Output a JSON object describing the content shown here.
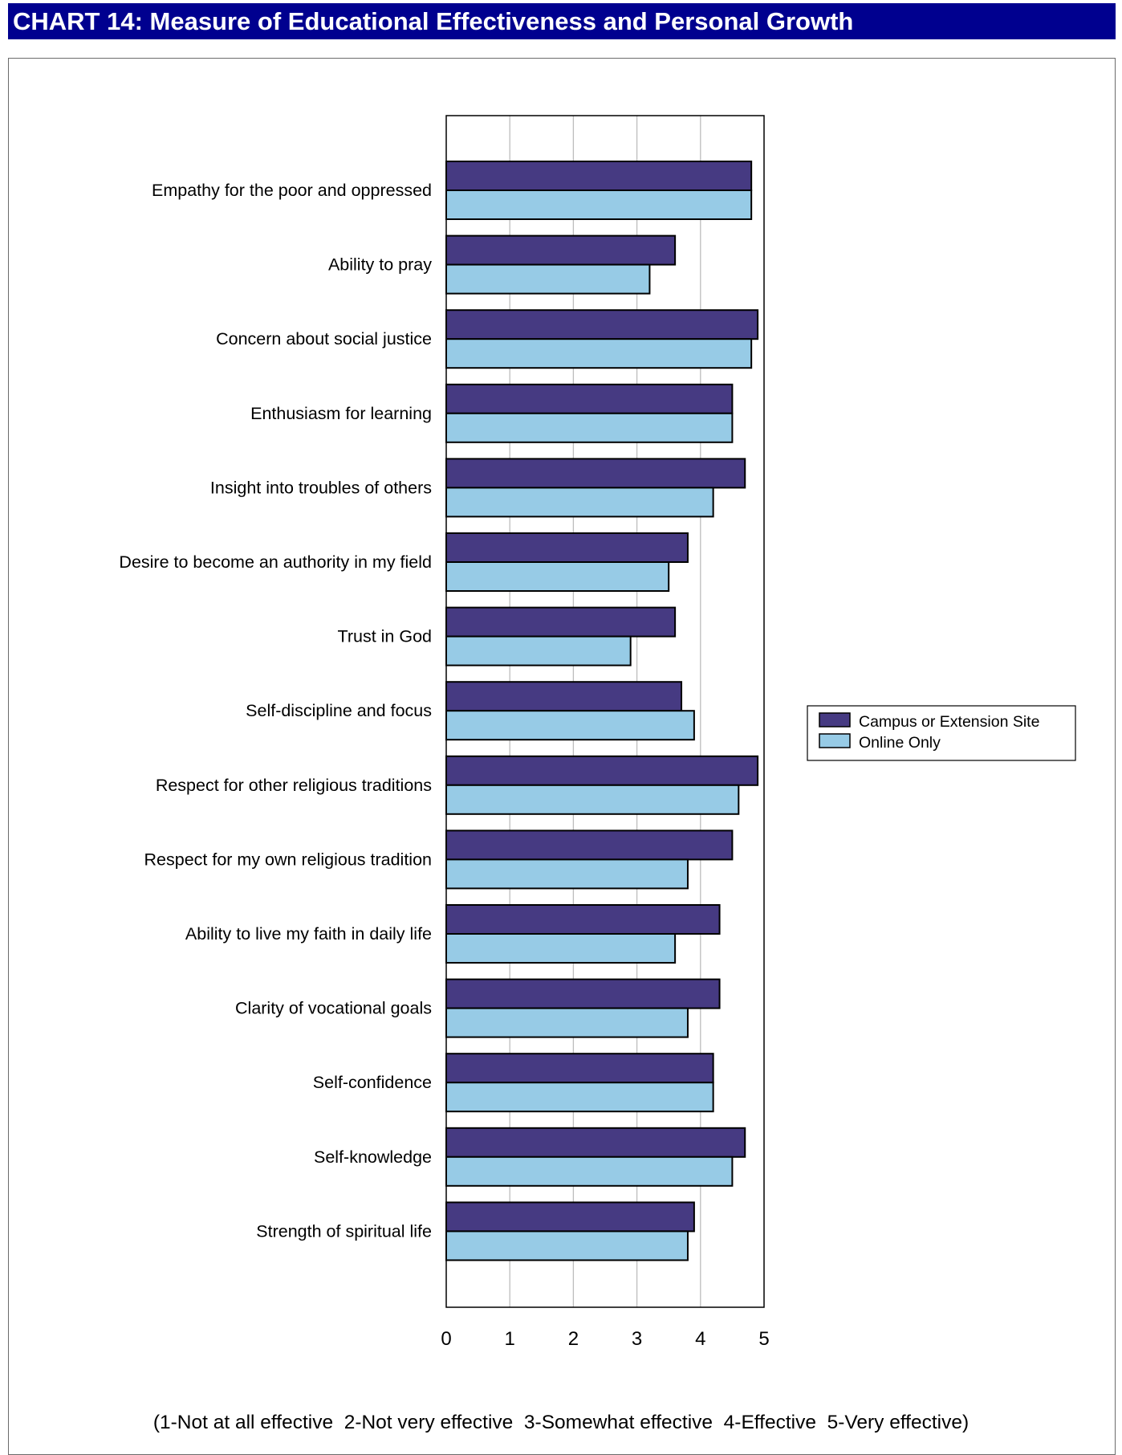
{
  "header": {
    "title": "CHART 14: Measure of Educational Effectiveness and Personal Growth"
  },
  "colors": {
    "title_bar": "#00008f",
    "campus": "#463a82",
    "online": "#97cbe6",
    "grid": "#bdbdbd"
  },
  "chart_data": {
    "type": "bar",
    "orientation": "horizontal",
    "title": "CHART 14: Measure of Educational Effectiveness and Personal Growth",
    "xlim": [
      0,
      5
    ],
    "xticks": [
      "0",
      "1",
      "2",
      "3",
      "4",
      "5"
    ],
    "grid": true,
    "legend_position": "right",
    "categories": [
      "Empathy for the poor and oppressed",
      "Ability to pray",
      "Concern about social justice",
      "Enthusiasm for learning",
      "Insight into troubles of others",
      "Desire to become an authority in my field",
      "Trust in God",
      "Self-discipline and focus",
      "Respect for other religious traditions",
      "Respect for my own religious tradition",
      "Ability to live my faith in daily life",
      "Clarity of vocational goals",
      "Self-confidence",
      "Self-knowledge",
      "Strength of spiritual life"
    ],
    "series": [
      {
        "name": "Campus or Extension Site",
        "color": "#463a82",
        "values": [
          4.8,
          3.6,
          4.9,
          4.5,
          4.7,
          3.8,
          3.6,
          3.7,
          4.9,
          4.5,
          4.3,
          4.3,
          4.2,
          4.7,
          3.9
        ]
      },
      {
        "name": "Online Only",
        "color": "#97cbe6",
        "values": [
          4.8,
          3.2,
          4.8,
          4.5,
          4.2,
          3.5,
          2.9,
          3.9,
          4.6,
          3.8,
          3.6,
          3.8,
          4.2,
          4.5,
          3.8
        ]
      }
    ],
    "footnote": "(1-Not at all effective  2-Not very effective  3-Somewhat effective  4-Effective  5-Very effective)"
  }
}
